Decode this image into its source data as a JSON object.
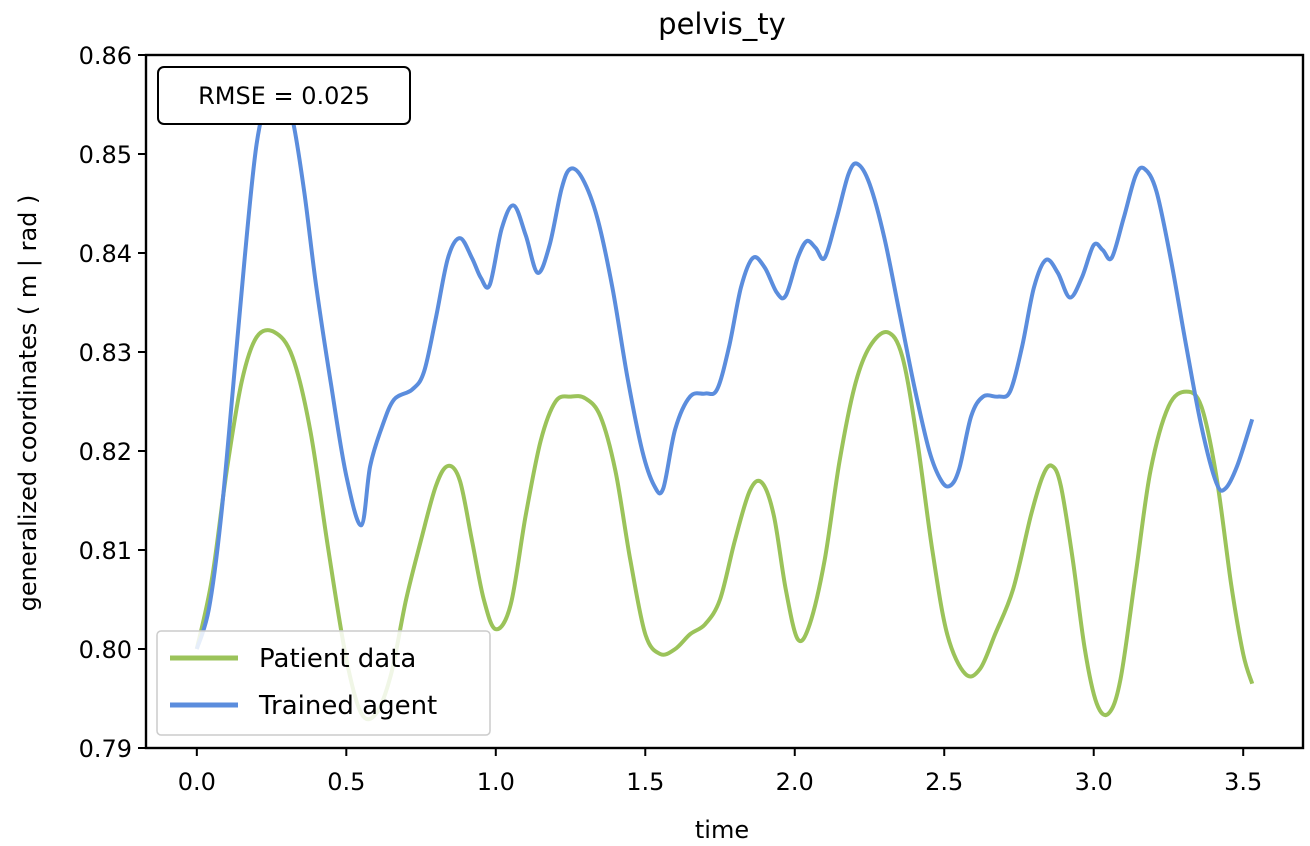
{
  "colors": {
    "patient": "#9bc35a",
    "agent": "#5b8ddd",
    "axes": "#000000",
    "legend_border": "#cccccc"
  },
  "chart_data": {
    "type": "line",
    "title": "pelvis_ty",
    "xlabel": "time",
    "ylabel": "generalized coordinates ( m | rad )",
    "xlim": [
      -0.17,
      3.7
    ],
    "ylim": [
      0.79,
      0.86
    ],
    "xticks": [
      "0.0",
      "0.5",
      "1.0",
      "1.5",
      "2.0",
      "2.5",
      "3.0",
      "3.5"
    ],
    "yticks": [
      "0.79",
      "0.80",
      "0.81",
      "0.82",
      "0.83",
      "0.84",
      "0.85",
      "0.86"
    ],
    "grid": false,
    "legend_position": "lower-left",
    "annotation": "RMSE = 0.025",
    "series": [
      {
        "name": "Patient data",
        "color_key": "patient",
        "points": [
          [
            0.0,
            0.8
          ],
          [
            0.05,
            0.807
          ],
          [
            0.1,
            0.818
          ],
          [
            0.15,
            0.827
          ],
          [
            0.2,
            0.8315
          ],
          [
            0.26,
            0.832
          ],
          [
            0.32,
            0.8295
          ],
          [
            0.38,
            0.822
          ],
          [
            0.44,
            0.81
          ],
          [
            0.5,
            0.799
          ],
          [
            0.55,
            0.7935
          ],
          [
            0.6,
            0.7935
          ],
          [
            0.65,
            0.7975
          ],
          [
            0.7,
            0.805
          ],
          [
            0.75,
            0.811
          ],
          [
            0.8,
            0.8165
          ],
          [
            0.84,
            0.8185
          ],
          [
            0.88,
            0.817
          ],
          [
            0.92,
            0.811
          ],
          [
            0.96,
            0.805
          ],
          [
            1.0,
            0.802
          ],
          [
            1.05,
            0.8045
          ],
          [
            1.1,
            0.8135
          ],
          [
            1.15,
            0.821
          ],
          [
            1.2,
            0.825
          ],
          [
            1.25,
            0.8255
          ],
          [
            1.3,
            0.8253
          ],
          [
            1.35,
            0.8235
          ],
          [
            1.4,
            0.818
          ],
          [
            1.45,
            0.809
          ],
          [
            1.5,
            0.8015
          ],
          [
            1.55,
            0.7995
          ],
          [
            1.6,
            0.8
          ],
          [
            1.65,
            0.8015
          ],
          [
            1.7,
            0.8025
          ],
          [
            1.75,
            0.805
          ],
          [
            1.8,
            0.811
          ],
          [
            1.85,
            0.816
          ],
          [
            1.89,
            0.8168
          ],
          [
            1.93,
            0.8135
          ],
          [
            1.97,
            0.806
          ],
          [
            2.01,
            0.801
          ],
          [
            2.05,
            0.8025
          ],
          [
            2.1,
            0.809
          ],
          [
            2.15,
            0.819
          ],
          [
            2.2,
            0.8265
          ],
          [
            2.25,
            0.8305
          ],
          [
            2.31,
            0.832
          ],
          [
            2.36,
            0.8295
          ],
          [
            2.41,
            0.821
          ],
          [
            2.46,
            0.81
          ],
          [
            2.51,
            0.8015
          ],
          [
            2.57,
            0.7975
          ],
          [
            2.62,
            0.798
          ],
          [
            2.67,
            0.8015
          ],
          [
            2.73,
            0.806
          ],
          [
            2.79,
            0.8135
          ],
          [
            2.83,
            0.8175
          ],
          [
            2.86,
            0.8185
          ],
          [
            2.89,
            0.8165
          ],
          [
            2.93,
            0.809
          ],
          [
            2.97,
            0.8
          ],
          [
            3.01,
            0.7945
          ],
          [
            3.05,
            0.7935
          ],
          [
            3.09,
            0.797
          ],
          [
            3.14,
            0.8075
          ],
          [
            3.19,
            0.818
          ],
          [
            3.25,
            0.8245
          ],
          [
            3.31,
            0.826
          ],
          [
            3.36,
            0.8245
          ],
          [
            3.41,
            0.8175
          ],
          [
            3.46,
            0.8065
          ],
          [
            3.5,
            0.7995
          ],
          [
            3.53,
            0.7965
          ]
        ]
      },
      {
        "name": "Trained agent",
        "color_key": "agent",
        "points": [
          [
            0.0,
            0.8
          ],
          [
            0.04,
            0.804
          ],
          [
            0.08,
            0.813
          ],
          [
            0.12,
            0.826
          ],
          [
            0.16,
            0.8395
          ],
          [
            0.2,
            0.851
          ],
          [
            0.24,
            0.856
          ],
          [
            0.28,
            0.8565
          ],
          [
            0.32,
            0.8535
          ],
          [
            0.36,
            0.846
          ],
          [
            0.4,
            0.8365
          ],
          [
            0.45,
            0.8265
          ],
          [
            0.5,
            0.8175
          ],
          [
            0.55,
            0.8125
          ],
          [
            0.58,
            0.8185
          ],
          [
            0.62,
            0.8225
          ],
          [
            0.66,
            0.8252
          ],
          [
            0.72,
            0.8262
          ],
          [
            0.76,
            0.828
          ],
          [
            0.8,
            0.8335
          ],
          [
            0.84,
            0.8395
          ],
          [
            0.88,
            0.8415
          ],
          [
            0.92,
            0.8395
          ],
          [
            0.95,
            0.8375
          ],
          [
            0.98,
            0.8368
          ],
          [
            1.02,
            0.8425
          ],
          [
            1.06,
            0.8448
          ],
          [
            1.1,
            0.8418
          ],
          [
            1.14,
            0.838
          ],
          [
            1.18,
            0.8408
          ],
          [
            1.22,
            0.8465
          ],
          [
            1.25,
            0.8485
          ],
          [
            1.29,
            0.8475
          ],
          [
            1.34,
            0.8435
          ],
          [
            1.39,
            0.8365
          ],
          [
            1.44,
            0.8275
          ],
          [
            1.49,
            0.82
          ],
          [
            1.53,
            0.8165
          ],
          [
            1.56,
            0.8162
          ],
          [
            1.6,
            0.8222
          ],
          [
            1.65,
            0.8255
          ],
          [
            1.7,
            0.8258
          ],
          [
            1.74,
            0.8262
          ],
          [
            1.78,
            0.8305
          ],
          [
            1.82,
            0.8365
          ],
          [
            1.86,
            0.8395
          ],
          [
            1.9,
            0.8385
          ],
          [
            1.94,
            0.836
          ],
          [
            1.97,
            0.8357
          ],
          [
            2.01,
            0.8395
          ],
          [
            2.04,
            0.8412
          ],
          [
            2.07,
            0.8405
          ],
          [
            2.1,
            0.8395
          ],
          [
            2.14,
            0.8435
          ],
          [
            2.18,
            0.848
          ],
          [
            2.21,
            0.849
          ],
          [
            2.25,
            0.847
          ],
          [
            2.3,
            0.8415
          ],
          [
            2.35,
            0.834
          ],
          [
            2.4,
            0.8265
          ],
          [
            2.45,
            0.82
          ],
          [
            2.49,
            0.817
          ],
          [
            2.52,
            0.8165
          ],
          [
            2.55,
            0.8182
          ],
          [
            2.59,
            0.8235
          ],
          [
            2.63,
            0.8255
          ],
          [
            2.68,
            0.8255
          ],
          [
            2.72,
            0.826
          ],
          [
            2.76,
            0.8305
          ],
          [
            2.8,
            0.8365
          ],
          [
            2.84,
            0.8393
          ],
          [
            2.88,
            0.838
          ],
          [
            2.92,
            0.8355
          ],
          [
            2.96,
            0.8375
          ],
          [
            3.0,
            0.8408
          ],
          [
            3.03,
            0.8403
          ],
          [
            3.06,
            0.8395
          ],
          [
            3.1,
            0.8435
          ],
          [
            3.14,
            0.8478
          ],
          [
            3.17,
            0.8485
          ],
          [
            3.21,
            0.8462
          ],
          [
            3.26,
            0.839
          ],
          [
            3.31,
            0.8305
          ],
          [
            3.36,
            0.8225
          ],
          [
            3.41,
            0.8168
          ],
          [
            3.44,
            0.8162
          ],
          [
            3.48,
            0.8185
          ],
          [
            3.53,
            0.8232
          ]
        ]
      }
    ]
  }
}
